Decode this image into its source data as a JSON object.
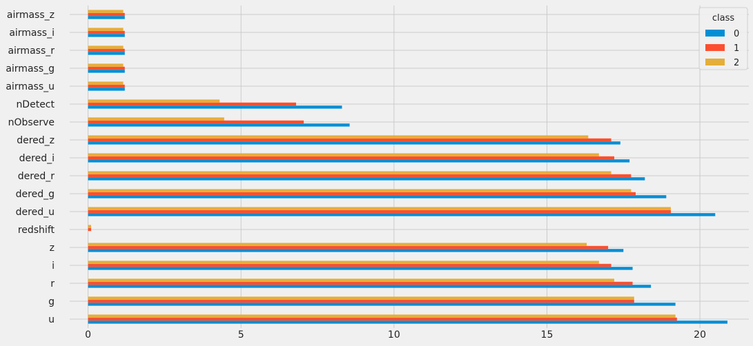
{
  "chart_data": {
    "type": "bar",
    "orientation": "horizontal",
    "title": "",
    "xlabel": "",
    "ylabel": "",
    "xlim": [
      -0.6,
      21.6
    ],
    "xticks": [
      0,
      5,
      10,
      15,
      20
    ],
    "grid": true,
    "legend": {
      "title": "class",
      "placement": "top-right"
    },
    "categories": [
      "u",
      "g",
      "r",
      "i",
      "z",
      "redshift",
      "dered_u",
      "dered_g",
      "dered_r",
      "dered_i",
      "dered_z",
      "nObserve",
      "nDetect",
      "airmass_u",
      "airmass_g",
      "airmass_r",
      "airmass_i",
      "airmass_z"
    ],
    "series": [
      {
        "name": "0",
        "color": "#008fd5",
        "values": [
          20.9,
          19.2,
          18.4,
          17.8,
          17.5,
          0.0,
          20.5,
          18.9,
          18.2,
          17.7,
          17.4,
          8.55,
          8.3,
          1.2,
          1.2,
          1.2,
          1.2,
          1.2
        ]
      },
      {
        "name": "1",
        "color": "#fc4f30",
        "values": [
          19.25,
          17.85,
          17.8,
          17.1,
          17.0,
          0.1,
          19.05,
          17.9,
          17.75,
          17.2,
          17.1,
          7.05,
          6.8,
          1.2,
          1.2,
          1.2,
          1.2,
          1.2
        ]
      },
      {
        "name": "2",
        "color": "#e5ae38",
        "values": [
          19.2,
          17.85,
          17.2,
          16.7,
          16.3,
          0.1,
          19.05,
          17.75,
          17.1,
          16.7,
          16.35,
          4.45,
          4.3,
          1.15,
          1.15,
          1.15,
          1.15,
          1.15
        ]
      }
    ]
  }
}
